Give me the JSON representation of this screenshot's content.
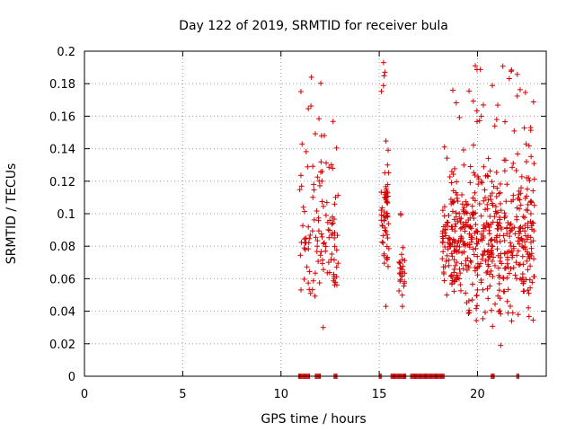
{
  "chart_data": {
    "type": "scatter",
    "title": "Day 122 of 2019, SRMTID for receiver bula",
    "xlabel": "GPS time / hours",
    "ylabel": "SRMTID / TECUs",
    "xlim": [
      0,
      23.5
    ],
    "ylim": [
      0,
      0.2
    ],
    "xticks": [
      0,
      5,
      10,
      15,
      20
    ],
    "xtick_labels": [
      "0",
      "5",
      "10",
      "15",
      "20"
    ],
    "yticks": [
      0,
      0.02,
      0.04,
      0.06,
      0.08,
      0.1,
      0.12,
      0.14,
      0.16,
      0.18,
      0.2
    ],
    "ytick_labels": [
      "0",
      "0.02",
      "0.04",
      "0.06",
      "0.08",
      "0.1",
      "0.12",
      "0.14",
      "0.16",
      "0.18",
      "0.2"
    ],
    "grid": true,
    "marker": "+",
    "color": "#d40000",
    "clusters": [
      {
        "x_start": 10.95,
        "x_end": 12.95,
        "y_min": 0.03,
        "y_max": 0.184,
        "count": 120
      },
      {
        "x_start": 15.1,
        "x_end": 15.5,
        "y_min": 0.043,
        "y_max": 0.193,
        "count": 60
      },
      {
        "x_start": 16.0,
        "x_end": 16.3,
        "y_min": 0.043,
        "y_max": 0.1,
        "count": 25
      },
      {
        "x_start": 18.2,
        "x_end": 18.6,
        "y_min": 0.05,
        "y_max": 0.141,
        "count": 40
      },
      {
        "x_start": 18.6,
        "x_end": 22.9,
        "y_min": 0.019,
        "y_max": 0.191,
        "count": 520
      }
    ],
    "zero_segments": [
      [
        10.9,
        11.5
      ],
      [
        11.75,
        12.05
      ],
      [
        12.7,
        12.9
      ],
      [
        15.0,
        15.15
      ],
      [
        15.6,
        16.4
      ],
      [
        16.6,
        18.35
      ],
      [
        20.7,
        20.85
      ],
      [
        22.0,
        22.15
      ]
    ]
  }
}
